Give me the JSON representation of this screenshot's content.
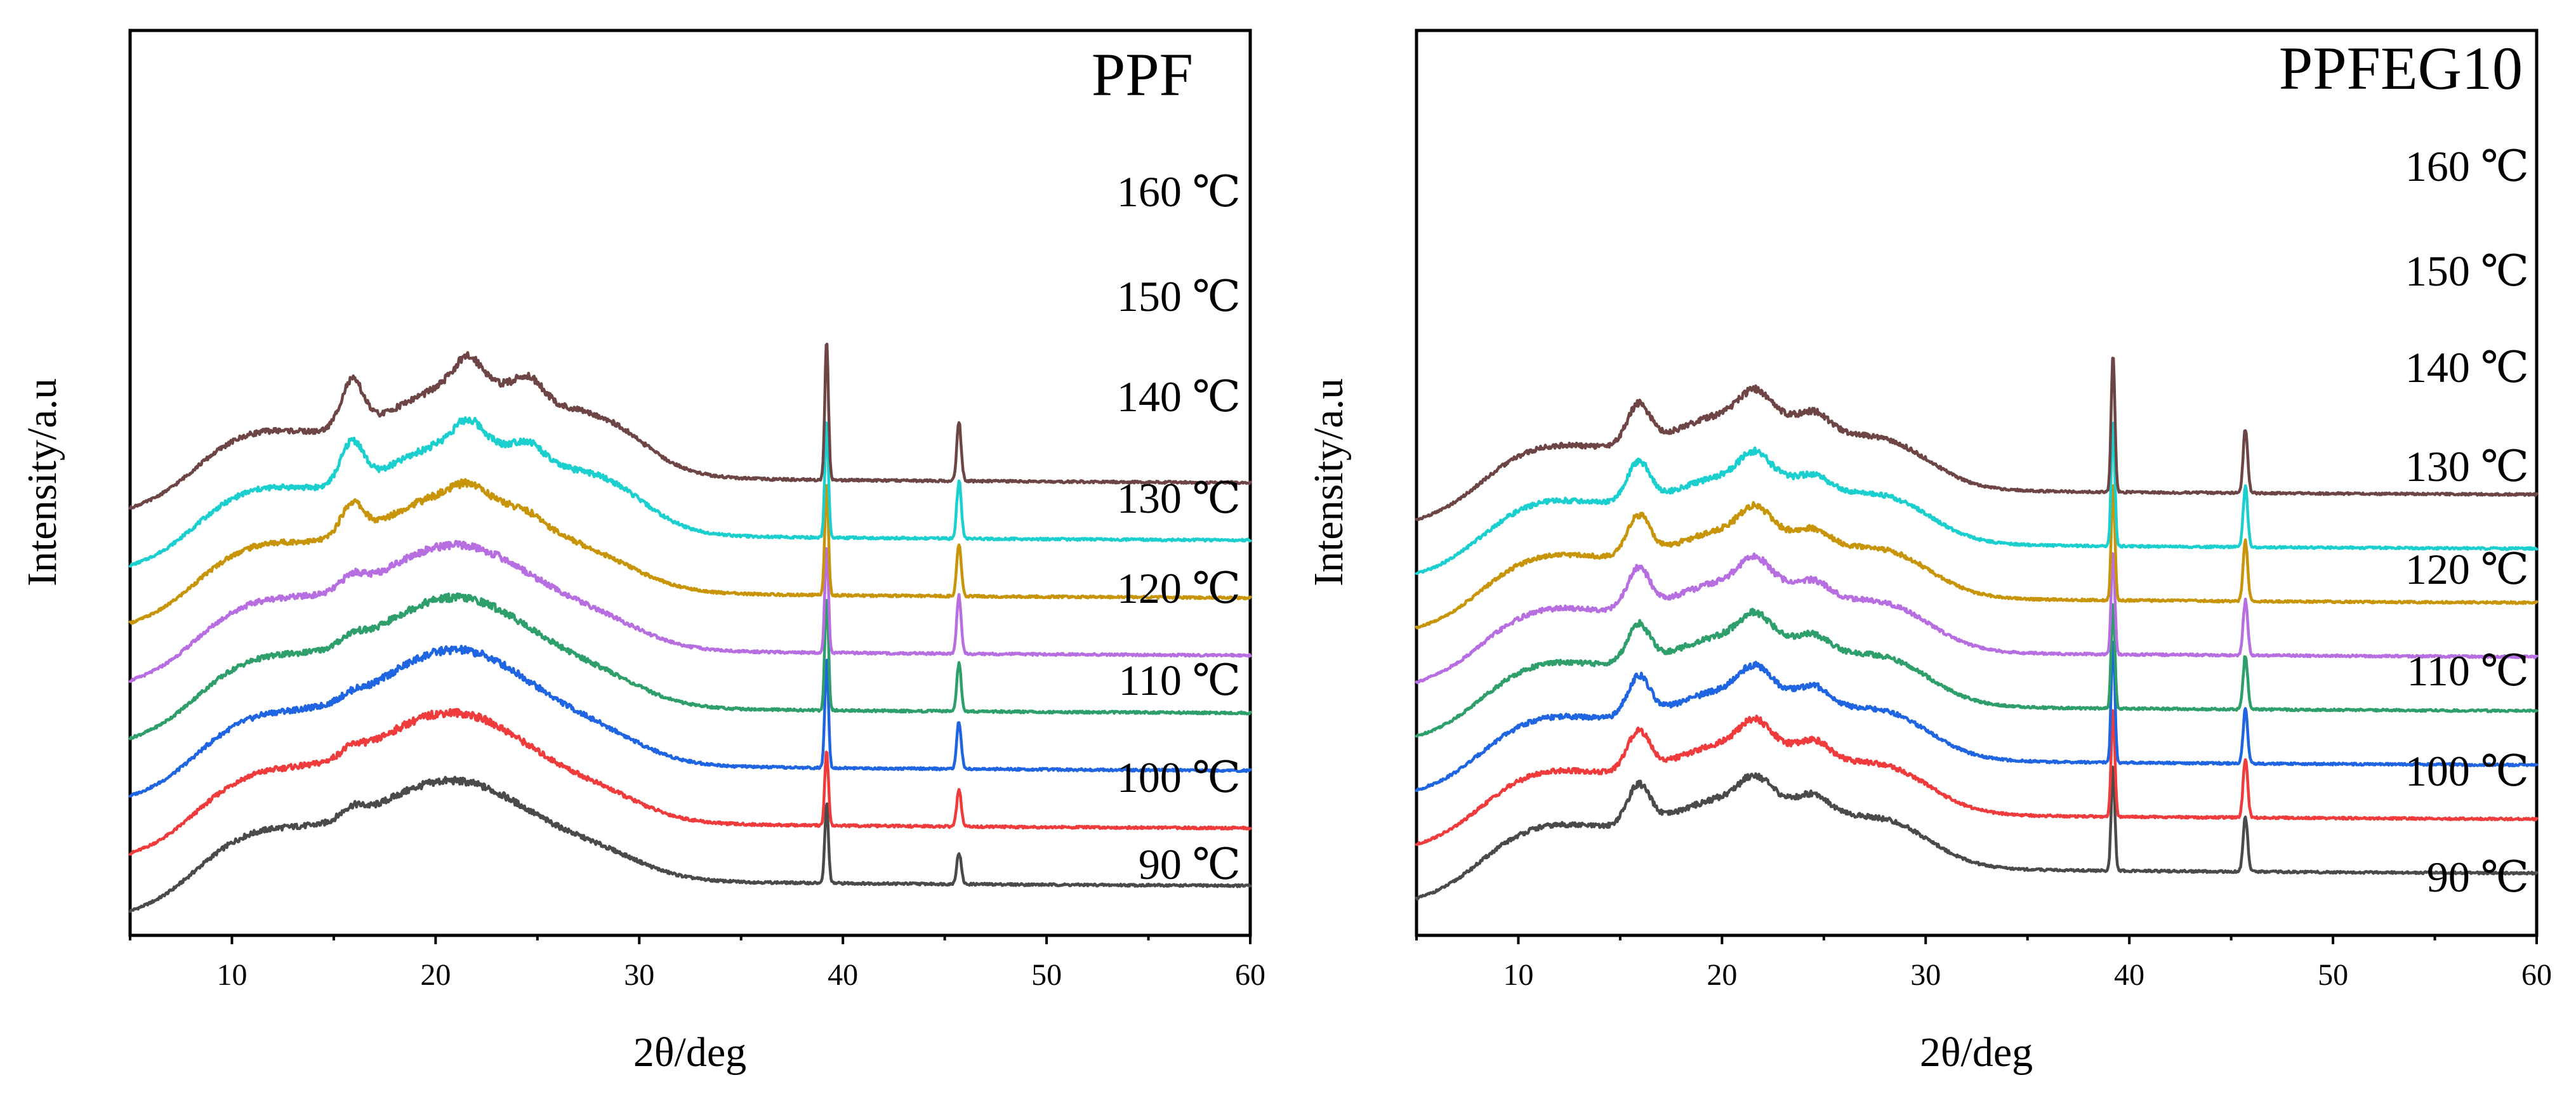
{
  "chart_data": [
    {
      "type": "line",
      "title": "PPF",
      "xlabel": "2θ/deg",
      "ylabel": "Intensity/a.u",
      "xlim": [
        5,
        60
      ],
      "xticks": [
        10,
        20,
        30,
        40,
        50,
        60
      ],
      "grid": false,
      "y_ticks_shown": false,
      "note": "stacked XRD patterns, vertical offsets between traces, intensity in arbitrary units",
      "series": [
        {
          "name": "90 ℃",
          "label": "90 ℃",
          "color": "#4a4a4a",
          "features": {
            "base": 0.0,
            "halo_center": 20.8,
            "halo_height": 0.95,
            "peak_16": 0.1,
            "peak_21_5": 0.0,
            "peak_24_5": 0.0,
            "peak_39_2": 0.75,
            "peak_45_7": 0.3
          }
        },
        {
          "name": "100 ℃",
          "label": "100 ℃",
          "color": "#ef3b3b",
          "features": {
            "base": 0.55,
            "halo_center": 20.8,
            "halo_height": 1.05,
            "peak_16": 0.08,
            "peak_21_5": 0.0,
            "peak_24_5": 0.0,
            "peak_39_2": 0.72,
            "peak_45_7": 0.35
          }
        },
        {
          "name": "110 ℃",
          "label": "110 ℃",
          "color": "#1f64e0",
          "features": {
            "base": 1.1,
            "halo_center": 21.0,
            "halo_height": 1.1,
            "peak_16": 0.05,
            "peak_21_5": 0.0,
            "peak_24_5": 0.0,
            "peak_39_2": 1.05,
            "peak_45_7": 0.45
          }
        },
        {
          "name": "120 ℃",
          "label": "120 ℃",
          "color": "#2e9e6a",
          "features": {
            "base": 1.65,
            "halo_center": 21.0,
            "halo_height": 1.05,
            "peak_16": 0.08,
            "peak_21_5": 0.0,
            "peak_24_5": 0.0,
            "peak_39_2": 1.1,
            "peak_45_7": 0.45
          }
        },
        {
          "name": "130 ℃",
          "label": "130 ℃",
          "color": "#b76ee0",
          "features": {
            "base": 2.2,
            "halo_center": 21.0,
            "halo_height": 1.0,
            "peak_16": 0.12,
            "peak_21_5": 0.0,
            "peak_24_5": 0.0,
            "peak_39_2": 1.0,
            "peak_45_7": 0.55
          }
        },
        {
          "name": "140 ℃",
          "label": "140 ℃",
          "color": "#c8950a",
          "features": {
            "base": 2.75,
            "halo_center": 21.2,
            "halo_height": 0.95,
            "peak_16": 0.3,
            "peak_21_5": 0.1,
            "peak_24_5": 0.05,
            "peak_39_2": 1.05,
            "peak_45_7": 0.5
          }
        },
        {
          "name": "150 ℃",
          "label": "150 ℃",
          "color": "#1ccfcf",
          "features": {
            "base": 3.3,
            "halo_center": 21.5,
            "halo_height": 0.9,
            "peak_16": 0.4,
            "peak_21_5": 0.2,
            "peak_24_5": 0.15,
            "peak_39_2": 1.1,
            "peak_45_7": 0.55
          }
        },
        {
          "name": "160 ℃",
          "label": "160 ℃",
          "color": "#6e4545",
          "features": {
            "base": 3.85,
            "halo_center": 21.7,
            "halo_height": 0.9,
            "peak_16": 0.45,
            "peak_21_5": 0.25,
            "peak_24_5": 0.2,
            "peak_39_2": 1.3,
            "peak_45_7": 0.55
          }
        }
      ]
    },
    {
      "type": "line",
      "title": "PPFEG10",
      "xlabel": "2θ/deg",
      "ylabel": "Intensity/a.u",
      "xlim": [
        5,
        60
      ],
      "xticks": [
        10,
        20,
        30,
        40,
        50,
        60
      ],
      "grid": false,
      "y_ticks_shown": false,
      "note": "stacked XRD patterns, vertical offsets between traces, intensity in arbitrary units",
      "series": [
        {
          "name": "90 ℃",
          "label": "90 ℃",
          "color": "#4a4a4a",
          "features": {
            "base": 0.0,
            "halo_center": 21.3,
            "halo_height": 0.75,
            "peak_16": 0.4,
            "peak_21_5": 0.2,
            "peak_24_5": 0.15,
            "peak_39_2": 1.05,
            "peak_45_7": 0.55
          }
        },
        {
          "name": "100 ℃",
          "label": "100 ℃",
          "color": "#ef3b3b",
          "features": {
            "base": 0.55,
            "halo_center": 21.3,
            "halo_height": 0.75,
            "peak_16": 0.4,
            "peak_21_5": 0.22,
            "peak_24_5": 0.15,
            "peak_39_2": 1.1,
            "peak_45_7": 0.6
          }
        },
        {
          "name": "110 ℃",
          "label": "110 ℃",
          "color": "#1f64e0",
          "features": {
            "base": 1.1,
            "halo_center": 21.3,
            "halo_height": 0.75,
            "peak_16": 0.4,
            "peak_21_5": 0.22,
            "peak_24_5": 0.15,
            "peak_39_2": 1.25,
            "peak_45_7": 0.55
          }
        },
        {
          "name": "120 ℃",
          "label": "120 ℃",
          "color": "#2e9e6a",
          "features": {
            "base": 1.65,
            "halo_center": 21.3,
            "halo_height": 0.75,
            "peak_16": 0.38,
            "peak_21_5": 0.2,
            "peak_24_5": 0.12,
            "peak_39_2": 1.05,
            "peak_45_7": 0.55
          }
        },
        {
          "name": "130 ℃",
          "label": "130 ℃",
          "color": "#b76ee0",
          "features": {
            "base": 2.2,
            "halo_center": 21.3,
            "halo_height": 0.75,
            "peak_16": 0.4,
            "peak_21_5": 0.22,
            "peak_24_5": 0.12,
            "peak_39_2": 1.05,
            "peak_45_7": 0.55
          }
        },
        {
          "name": "140 ℃",
          "label": "140 ℃",
          "color": "#c8950a",
          "features": {
            "base": 2.75,
            "halo_center": 21.3,
            "halo_height": 0.72,
            "peak_16": 0.4,
            "peak_21_5": 0.22,
            "peak_24_5": 0.12,
            "peak_39_2": 1.15,
            "peak_45_7": 0.6
          }
        },
        {
          "name": "150 ℃",
          "label": "150 ℃",
          "color": "#1ccfcf",
          "features": {
            "base": 3.3,
            "halo_center": 21.3,
            "halo_height": 0.72,
            "peak_16": 0.4,
            "peak_21_5": 0.22,
            "peak_24_5": 0.12,
            "peak_39_2": 1.25,
            "peak_45_7": 0.6
          }
        },
        {
          "name": "160 ℃",
          "label": "160 ℃",
          "color": "#6e4545",
          "features": {
            "base": 3.85,
            "halo_center": 21.3,
            "halo_height": 0.8,
            "peak_16": 0.4,
            "peak_21_5": 0.22,
            "peak_24_5": 0.15,
            "peak_39_2": 1.4,
            "peak_45_7": 0.65
          }
        }
      ]
    }
  ]
}
